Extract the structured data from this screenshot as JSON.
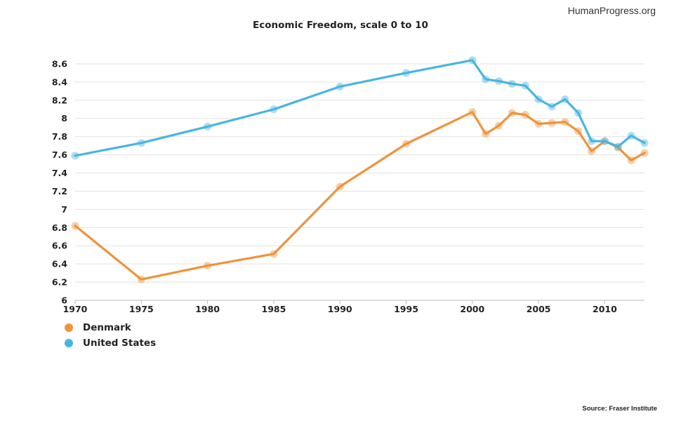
{
  "brand": "HumanProgress.org",
  "source": "Source: Fraser Institute",
  "chart_data": {
    "type": "line",
    "title": "Economic Freedom, scale 0 to 10",
    "xlabel": "",
    "ylabel": "",
    "xlim": [
      1970,
      2013
    ],
    "ylim": [
      6,
      8.7
    ],
    "x_ticks": [
      1970,
      1975,
      1980,
      1985,
      1990,
      1995,
      2000,
      2005,
      2010
    ],
    "y_ticks": [
      6,
      6.2,
      6.4,
      6.6,
      6.8,
      7,
      7.2,
      7.4,
      7.6,
      7.8,
      8,
      8.2,
      8.4,
      8.6
    ],
    "y_tick_labels": [
      "6",
      "6.2",
      "6.4",
      "6.6",
      "6.8",
      "7",
      "7.2",
      "7.4",
      "7.6",
      "7.8",
      "8",
      "8.2",
      "8.4",
      "8.6"
    ],
    "grid": true,
    "legend_position": "bottom-left",
    "series": [
      {
        "name": "Denmark",
        "color": "#f0923a",
        "x": [
          1970,
          1975,
          1980,
          1985,
          1990,
          1995,
          2000,
          2001,
          2002,
          2003,
          2004,
          2005,
          2006,
          2007,
          2008,
          2009,
          2010,
          2011,
          2012,
          2013
        ],
        "y": [
          6.82,
          6.23,
          6.38,
          6.51,
          7.25,
          7.72,
          8.07,
          7.83,
          7.92,
          8.06,
          8.04,
          7.94,
          7.95,
          7.96,
          7.86,
          7.64,
          7.75,
          7.68,
          7.54,
          7.62
        ]
      },
      {
        "name": "United States",
        "color": "#48b5e0",
        "x": [
          1970,
          1975,
          1980,
          1985,
          1990,
          1995,
          2000,
          2001,
          2002,
          2003,
          2004,
          2005,
          2006,
          2007,
          2008,
          2009,
          2010,
          2011,
          2012,
          2013
        ],
        "y": [
          7.59,
          7.73,
          7.91,
          8.1,
          8.35,
          8.5,
          8.64,
          8.43,
          8.41,
          8.38,
          8.36,
          8.21,
          8.13,
          8.21,
          8.06,
          7.75,
          7.75,
          7.69,
          7.81,
          7.73
        ]
      }
    ]
  }
}
